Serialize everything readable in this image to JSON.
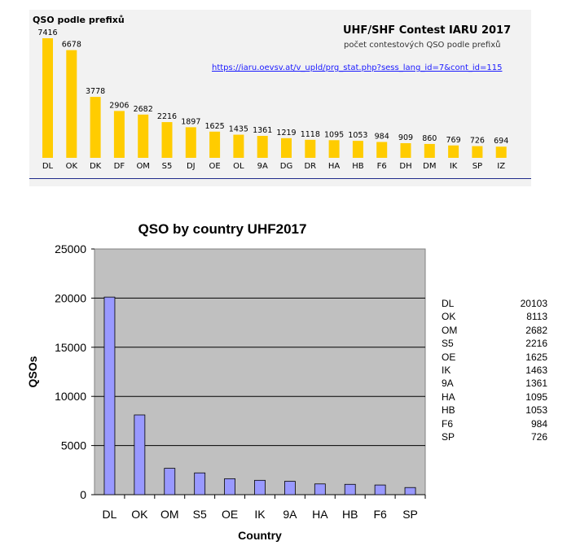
{
  "top_chart": {
    "title": "QSO podle prefixů",
    "heading": "UHF/SHF Contest IARU 2017",
    "subtitle": "počet contestových QSO podle prefixů",
    "link": "https://iaru.oevsv.at/v_upld/prg_stat.php?sess_lang_id=7&cont_id=115",
    "bar_color": "#ffcc00"
  },
  "bottom_chart": {
    "title": "QSO by country UHF2017",
    "bar_color": "#9999ff",
    "plot_bg": "#c0c0c0"
  },
  "table": [
    {
      "country": "DL",
      "value": "20103"
    },
    {
      "country": "OK",
      "value": "8113"
    },
    {
      "country": "OM",
      "value": "2682"
    },
    {
      "country": "S5",
      "value": "2216"
    },
    {
      "country": "OE",
      "value": "1625"
    },
    {
      "country": "IK",
      "value": "1463"
    },
    {
      "country": "9A",
      "value": "1361"
    },
    {
      "country": "HA",
      "value": "1095"
    },
    {
      "country": "HB",
      "value": "1053"
    },
    {
      "country": "F6",
      "value": "984"
    },
    {
      "country": "SP",
      "value": "726"
    }
  ],
  "chart_data": [
    {
      "type": "bar",
      "title": "QSO podle prefixů",
      "categories": [
        "DL",
        "OK",
        "DK",
        "DF",
        "OM",
        "S5",
        "DJ",
        "OE",
        "OL",
        "9A",
        "DG",
        "DR",
        "HA",
        "HB",
        "F6",
        "DH",
        "DM",
        "IK",
        "SP",
        "IZ"
      ],
      "values": [
        7416,
        6678,
        3778,
        2906,
        2682,
        2216,
        1897,
        1625,
        1435,
        1361,
        1219,
        1118,
        1095,
        1053,
        984,
        909,
        860,
        769,
        726,
        694
      ],
      "grid": false
    },
    {
      "type": "bar",
      "title": "QSO by country UHF2017",
      "xlabel": "Country",
      "ylabel": "QSOs",
      "categories": [
        "DL",
        "OK",
        "OM",
        "S5",
        "OE",
        "IK",
        "9A",
        "HA",
        "HB",
        "F6",
        "SP"
      ],
      "values": [
        20103,
        8113,
        2682,
        2216,
        1625,
        1463,
        1361,
        1095,
        1053,
        984,
        726
      ],
      "ylim": [
        0,
        25000
      ],
      "yticks": [
        0,
        5000,
        10000,
        15000,
        20000,
        25000
      ],
      "grid": true
    }
  ]
}
